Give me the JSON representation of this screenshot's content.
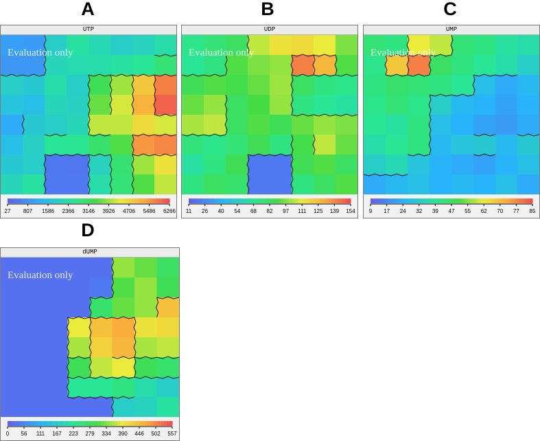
{
  "panels": [
    {
      "letter": "A",
      "chart_data": {
        "type": "heatmap",
        "title": "UTP",
        "watermark": "Evaluation only",
        "colorbar_ticks": [
          "27",
          "807",
          "1586",
          "2366",
          "3146",
          "3926",
          "4706",
          "5486",
          "6266"
        ],
        "range": [
          27,
          6266
        ],
        "grid": "8x8",
        "values": [
          [
            0.15,
            0.14,
            0.3,
            0.38,
            0.34,
            0.3,
            0.32,
            0.36
          ],
          [
            0.13,
            0.13,
            0.33,
            0.35,
            0.36,
            0.38,
            0.4,
            0.46
          ],
          [
            0.3,
            0.28,
            0.36,
            0.3,
            0.52,
            0.63,
            0.78,
            0.92
          ],
          [
            0.26,
            0.24,
            0.33,
            0.31,
            0.58,
            0.68,
            0.83,
            0.97
          ],
          [
            0.18,
            0.28,
            0.3,
            0.33,
            0.66,
            0.66,
            0.74,
            0.68
          ],
          [
            0.24,
            0.31,
            0.4,
            0.41,
            0.48,
            0.56,
            0.88,
            0.91
          ],
          [
            0.28,
            0.3,
            0.06,
            0.05,
            0.32,
            0.47,
            0.63,
            0.72
          ],
          [
            0.33,
            0.38,
            0.06,
            0.06,
            0.36,
            0.46,
            0.56,
            0.66
          ]
        ]
      }
    },
    {
      "letter": "B",
      "chart_data": {
        "type": "heatmap",
        "title": "UDP",
        "watermark": "Evaluation only",
        "colorbar_ticks": [
          "11",
          "26",
          "40",
          "54",
          "68",
          "82",
          "97",
          "111",
          "125",
          "139",
          "154"
        ],
        "range": [
          11,
          154
        ],
        "grid": "8x8",
        "values": [
          [
            0.42,
            0.46,
            0.5,
            0.66,
            0.72,
            0.74,
            0.7,
            0.6
          ],
          [
            0.4,
            0.44,
            0.56,
            0.6,
            0.62,
            0.92,
            0.82,
            0.56
          ],
          [
            0.52,
            0.56,
            0.54,
            0.58,
            0.63,
            0.5,
            0.44,
            0.42
          ],
          [
            0.58,
            0.62,
            0.5,
            0.55,
            0.62,
            0.44,
            0.4,
            0.38
          ],
          [
            0.64,
            0.66,
            0.5,
            0.56,
            0.52,
            0.58,
            0.62,
            0.6
          ],
          [
            0.45,
            0.42,
            0.46,
            0.52,
            0.44,
            0.54,
            0.66,
            0.58
          ],
          [
            0.38,
            0.44,
            0.52,
            0.06,
            0.06,
            0.52,
            0.56,
            0.5
          ],
          [
            0.44,
            0.5,
            0.48,
            0.06,
            0.06,
            0.44,
            0.5,
            0.56
          ]
        ]
      }
    },
    {
      "letter": "C",
      "chart_data": {
        "type": "heatmap",
        "title": "UMP",
        "watermark": "Evaluation only",
        "colorbar_ticks": [
          "9",
          "17",
          "24",
          "32",
          "39",
          "47",
          "55",
          "62",
          "70",
          "77",
          "85"
        ],
        "range": [
          9,
          85
        ],
        "grid": "8x8",
        "values": [
          [
            0.46,
            0.44,
            0.7,
            0.66,
            0.46,
            0.44,
            0.38,
            0.36
          ],
          [
            0.42,
            0.78,
            0.92,
            0.5,
            0.44,
            0.4,
            0.36,
            0.3
          ],
          [
            0.44,
            0.48,
            0.46,
            0.44,
            0.4,
            0.24,
            0.18,
            0.22
          ],
          [
            0.42,
            0.46,
            0.42,
            0.3,
            0.22,
            0.2,
            0.16,
            0.2
          ],
          [
            0.4,
            0.38,
            0.44,
            0.24,
            0.2,
            0.16,
            0.14,
            0.18
          ],
          [
            0.36,
            0.4,
            0.44,
            0.22,
            0.26,
            0.28,
            0.22,
            0.28
          ],
          [
            0.3,
            0.34,
            0.26,
            0.2,
            0.18,
            0.16,
            0.2,
            0.24
          ],
          [
            0.18,
            0.22,
            0.24,
            0.2,
            0.22,
            0.2,
            0.24,
            0.18
          ]
        ]
      }
    },
    {
      "letter": "D",
      "chart_data": {
        "type": "heatmap",
        "title": "dUMP",
        "watermark": "Evaluation only",
        "colorbar_ticks": [
          "0",
          "56",
          "111",
          "167",
          "223",
          "279",
          "334",
          "390",
          "446",
          "502",
          "557"
        ],
        "range": [
          0,
          557
        ],
        "grid": "8x8",
        "values": [
          [
            0.04,
            0.04,
            0.04,
            0.04,
            0.04,
            0.62,
            0.58,
            0.5
          ],
          [
            0.04,
            0.04,
            0.04,
            0.04,
            0.06,
            0.56,
            0.62,
            0.52
          ],
          [
            0.04,
            0.04,
            0.04,
            0.04,
            0.48,
            0.58,
            0.62,
            0.8
          ],
          [
            0.04,
            0.04,
            0.04,
            0.7,
            0.8,
            0.84,
            0.72,
            0.74
          ],
          [
            0.04,
            0.04,
            0.04,
            0.64,
            0.76,
            0.82,
            0.64,
            0.66
          ],
          [
            0.04,
            0.04,
            0.04,
            0.52,
            0.66,
            0.7,
            0.52,
            0.48
          ],
          [
            0.04,
            0.04,
            0.04,
            0.4,
            0.4,
            0.44,
            0.36,
            0.3
          ],
          [
            0.04,
            0.04,
            0.04,
            0.04,
            0.04,
            0.3,
            0.32,
            0.38
          ]
        ]
      }
    }
  ]
}
